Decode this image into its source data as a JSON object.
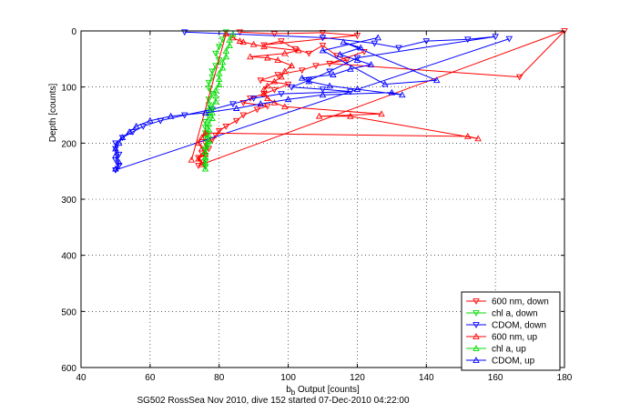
{
  "chart_data": {
    "type": "line",
    "xlabel_main": "b",
    "xlabel_sub": "b",
    "xlabel_rest": " Output [counts]",
    "ylabel": "Depth [counts]",
    "caption": "SG502 RossSea Nov 2010, dive 152 started 07-Dec-2010 04:22:00",
    "xlim": [
      40,
      180
    ],
    "ylim": [
      0,
      600
    ],
    "y_reversed": true,
    "xticks": [
      40,
      60,
      80,
      100,
      120,
      140,
      160,
      180
    ],
    "yticks": [
      0,
      100,
      200,
      300,
      400,
      500,
      600
    ],
    "grid": "dotted",
    "legend_position": "bottom-right",
    "series": [
      {
        "name": "600 nm, down",
        "color": "#ff0000",
        "marker": "triangle-down",
        "points": [
          [
            86,
            2
          ],
          [
            96,
            5
          ],
          [
            110,
            3
          ],
          [
            120,
            8
          ],
          [
            93,
            25
          ],
          [
            98,
            18
          ],
          [
            102,
            32
          ],
          [
            106,
            40
          ],
          [
            110,
            26
          ],
          [
            114,
            44
          ],
          [
            117,
            52
          ],
          [
            108,
            62
          ],
          [
            104,
            70
          ],
          [
            97,
            78
          ],
          [
            92,
            88
          ],
          [
            100,
            95
          ],
          [
            96,
            105
          ],
          [
            93,
            112
          ],
          [
            89,
            120
          ],
          [
            87,
            128
          ],
          [
            94,
            134
          ],
          [
            91,
            140
          ],
          [
            87,
            150
          ],
          [
            85,
            160
          ],
          [
            82,
            170
          ],
          [
            80,
            178
          ],
          [
            79,
            186
          ],
          [
            78,
            194
          ],
          [
            76,
            200
          ],
          [
            77,
            210
          ],
          [
            75,
            218
          ],
          [
            74,
            226
          ],
          [
            75,
            234
          ],
          [
            74,
            240
          ],
          [
            180,
            0
          ],
          [
            167,
            82
          ],
          [
            112,
            58
          ],
          [
            122,
            37
          ]
        ]
      },
      {
        "name": "chl a, down",
        "color": "#00dd00",
        "marker": "triangle-down",
        "points": [
          [
            82,
            2
          ],
          [
            81,
            15
          ],
          [
            80,
            28
          ],
          [
            79,
            40
          ],
          [
            80,
            52
          ],
          [
            79,
            62
          ],
          [
            78,
            72
          ],
          [
            78,
            82
          ],
          [
            77,
            92
          ],
          [
            77,
            102
          ],
          [
            78,
            112
          ],
          [
            77,
            122
          ],
          [
            77,
            132
          ],
          [
            77,
            142
          ],
          [
            77,
            152
          ],
          [
            76,
            162
          ],
          [
            76,
            172
          ],
          [
            76,
            182
          ],
          [
            76,
            192
          ],
          [
            77,
            202
          ],
          [
            76,
            212
          ],
          [
            76,
            222
          ],
          [
            76,
            232
          ],
          [
            76,
            242
          ]
        ]
      },
      {
        "name": "CDOM, down",
        "color": "#0000ff",
        "marker": "triangle-down",
        "points": [
          [
            70,
            2
          ],
          [
            110,
            12
          ],
          [
            125,
            22
          ],
          [
            132,
            30
          ],
          [
            140,
            18
          ],
          [
            152,
            15
          ],
          [
            160,
            10
          ],
          [
            120,
            48
          ],
          [
            112,
            72
          ],
          [
            106,
            88
          ],
          [
            101,
            100
          ],
          [
            110,
            104
          ],
          [
            118,
            108
          ],
          [
            98,
            112
          ],
          [
            90,
            120
          ],
          [
            84,
            130
          ],
          [
            78,
            140
          ],
          [
            70,
            150
          ],
          [
            63,
            160
          ],
          [
            58,
            170
          ],
          [
            55,
            180
          ],
          [
            52,
            190
          ],
          [
            50,
            200
          ],
          [
            50,
            210
          ],
          [
            51,
            220
          ],
          [
            50,
            230
          ],
          [
            51,
            240
          ],
          [
            50,
            248
          ],
          [
            164,
            14
          ]
        ]
      },
      {
        "name": "600 nm, up",
        "color": "#ff0000",
        "marker": "triangle-up",
        "points": [
          [
            75,
            238
          ],
          [
            74,
            228
          ],
          [
            76,
            220
          ],
          [
            75,
            210
          ],
          [
            74,
            200
          ],
          [
            75,
            190
          ],
          [
            76,
            182
          ],
          [
            152,
            188
          ],
          [
            155,
            192
          ],
          [
            118,
            152
          ],
          [
            109,
            152
          ],
          [
            127,
            148
          ],
          [
            99,
            135
          ],
          [
            96,
            128
          ],
          [
            94,
            120
          ],
          [
            93,
            112
          ],
          [
            93,
            104
          ],
          [
            94,
            98
          ],
          [
            96,
            90
          ],
          [
            98,
            82
          ],
          [
            99,
            72
          ],
          [
            101,
            62
          ],
          [
            97,
            52
          ],
          [
            94,
            48
          ],
          [
            89,
            46
          ],
          [
            99,
            40
          ],
          [
            103,
            35
          ],
          [
            93,
            28
          ],
          [
            90,
            24
          ],
          [
            87,
            20
          ],
          [
            86,
            18
          ],
          [
            84,
            12
          ],
          [
            82,
            5
          ],
          [
            72,
            230
          ]
        ]
      },
      {
        "name": "chl a, up",
        "color": "#00dd00",
        "marker": "triangle-up",
        "points": [
          [
            76,
            246
          ],
          [
            76,
            236
          ],
          [
            76,
            226
          ],
          [
            76,
            216
          ],
          [
            76,
            206
          ],
          [
            77,
            196
          ],
          [
            77,
            186
          ],
          [
            77,
            176
          ],
          [
            77,
            166
          ],
          [
            78,
            156
          ],
          [
            78,
            146
          ],
          [
            78,
            136
          ],
          [
            79,
            126
          ],
          [
            79,
            116
          ],
          [
            79,
            106
          ],
          [
            80,
            96
          ],
          [
            80,
            86
          ],
          [
            80,
            76
          ],
          [
            81,
            66
          ],
          [
            81,
            56
          ],
          [
            82,
            46
          ],
          [
            82,
            36
          ],
          [
            83,
            26
          ],
          [
            83,
            16
          ],
          [
            84,
            6
          ]
        ]
      },
      {
        "name": "CDOM, up",
        "color": "#0000ff",
        "marker": "triangle-up",
        "points": [
          [
            50,
            246
          ],
          [
            51,
            234
          ],
          [
            50,
            222
          ],
          [
            50,
            210
          ],
          [
            51,
            200
          ],
          [
            52,
            190
          ],
          [
            54,
            180
          ],
          [
            56,
            170
          ],
          [
            60,
            160
          ],
          [
            66,
            152
          ],
          [
            76,
            146
          ],
          [
            85,
            138
          ],
          [
            92,
            130
          ],
          [
            100,
            122
          ],
          [
            110,
            114
          ],
          [
            130,
            110
          ],
          [
            133,
            114
          ],
          [
            120,
            104
          ],
          [
            112,
            98
          ],
          [
            106,
            90
          ],
          [
            104,
            84
          ],
          [
            113,
            78
          ],
          [
            118,
            68
          ],
          [
            124,
            60
          ],
          [
            120,
            52
          ],
          [
            115,
            42
          ],
          [
            121,
            30
          ],
          [
            116,
            20
          ],
          [
            143,
            88
          ],
          [
            128,
            95
          ],
          [
            110,
            35
          ],
          [
            126,
            12
          ]
        ]
      }
    ]
  }
}
